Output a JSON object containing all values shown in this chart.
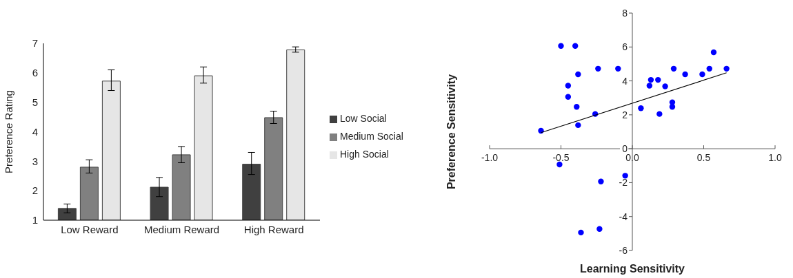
{
  "chart_data": [
    {
      "type": "bar",
      "ylabel": "Preference Rating",
      "categories": [
        "Low Reward",
        "Medium Reward",
        "High Reward"
      ],
      "series": [
        {
          "name": "Low Social",
          "color": "#404040",
          "values": [
            1.4,
            2.12,
            2.9
          ],
          "errors": [
            [
              1.25,
              1.55
            ],
            [
              1.8,
              2.45
            ],
            [
              2.55,
              3.3
            ]
          ]
        },
        {
          "name": "Medium Social",
          "color": "#808080",
          "values": [
            2.8,
            3.22,
            4.48
          ],
          "errors": [
            [
              2.6,
              3.05
            ],
            [
              2.95,
              3.5
            ],
            [
              4.28,
              4.7
            ]
          ]
        },
        {
          "name": "High Social",
          "color": "#e6e6e6",
          "values": [
            5.72,
            5.9,
            6.78
          ],
          "errors": [
            [
              5.4,
              6.1
            ],
            [
              5.65,
              6.2
            ],
            [
              6.7,
              6.88
            ]
          ]
        }
      ],
      "ylim": [
        1,
        7
      ],
      "yticks": [
        1,
        2,
        3,
        4,
        5,
        6,
        7
      ],
      "grid": false,
      "legend": "right"
    },
    {
      "type": "scatter",
      "xlabel": "Learning Sensitivity",
      "ylabel": "Preference Sensitivity",
      "marker": "circle",
      "grid": false,
      "legend": false,
      "xlim": [
        -1,
        1
      ],
      "xticks": [
        {
          "value": -1,
          "label": "-1.0"
        },
        {
          "value": -0.5,
          "label": "-0.5"
        },
        {
          "value": 0,
          "label": "0.0"
        },
        {
          "value": 0.5,
          "label": "0.5"
        },
        {
          "value": 1,
          "label": "1.0"
        }
      ],
      "ylim": [
        -6,
        8
      ],
      "yticks": [
        -6,
        -4,
        -2,
        0,
        2,
        4,
        6,
        8
      ],
      "series": [
        {
          "type": "scatter",
          "color": "#0000ff",
          "x": [
            -0.64,
            -0.5,
            -0.4,
            -0.45,
            -0.45,
            -0.38,
            -0.39,
            -0.38,
            -0.26,
            -0.24,
            -0.1,
            0.06,
            0.12,
            0.13,
            0.18,
            0.19,
            0.23,
            0.28,
            0.28,
            0.29,
            0.37,
            0.49,
            0.54,
            0.57,
            0.66,
            -0.51,
            -0.05,
            -0.22,
            -0.23,
            -0.36
          ],
          "values": [
            1.06,
            6.06,
            6.06,
            3.72,
            3.06,
            4.39,
            2.47,
            1.39,
            2.05,
            4.72,
            4.72,
            2.39,
            3.72,
            4.06,
            4.06,
            2.05,
            3.68,
            2.74,
            2.47,
            4.72,
            4.39,
            4.39,
            4.72,
            5.69,
            4.72,
            -0.93,
            -1.59,
            -1.93,
            -4.73,
            -4.94
          ]
        },
        {
          "type": "line",
          "marker": "none",
          "color": "#000000",
          "x": [
            -0.64,
            0.66
          ],
          "values": [
            0.95,
            4.48
          ]
        }
      ]
    }
  ]
}
